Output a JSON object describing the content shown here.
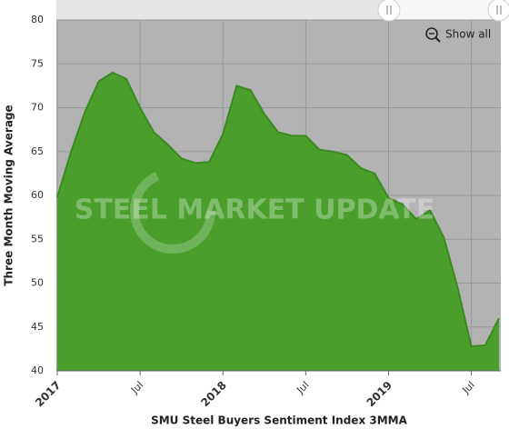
{
  "chart_data": {
    "type": "area",
    "title": "SMU Steel Buyers Sentiment Index 3MMA",
    "y_label": "Three Month Moving Average",
    "watermark": "STEEL MARKET UPDATE",
    "button": "Show all",
    "color": "#4a9e2c",
    "line_color": "#3b8a21",
    "grid": true,
    "categories": [
      "2017-01",
      "2017-02",
      "2017-03",
      "2017-04",
      "2017-05",
      "2017-06",
      "2017-07",
      "2017-08",
      "2017-09",
      "2017-10",
      "2017-11",
      "2017-12",
      "2018-01",
      "2018-02",
      "2018-03",
      "2018-04",
      "2018-05",
      "2018-06",
      "2018-07",
      "2018-08",
      "2018-09",
      "2018-10",
      "2018-11",
      "2018-12",
      "2019-01",
      "2019-02",
      "2019-03",
      "2019-04",
      "2019-05",
      "2019-06",
      "2019-07",
      "2019-08",
      "2019-09"
    ],
    "values": [
      59.8,
      65,
      69.5,
      73,
      74,
      73.3,
      70,
      67.2,
      65.8,
      64.2,
      63.7,
      63.8,
      67,
      72.5,
      72,
      69.3,
      67.2,
      66.8,
      66.8,
      65.2,
      65,
      64.6,
      63.1,
      62.5,
      59.7,
      59,
      57.3,
      58.3,
      55.2,
      49.5,
      42.8,
      42.9,
      46
    ],
    "ylim": [
      40,
      80
    ],
    "yticks": [
      40,
      45,
      50,
      55,
      60,
      65,
      70,
      75,
      80
    ],
    "xticks": [
      {
        "value": "2017-01",
        "label": "2017"
      },
      {
        "value": "2017-07",
        "label": "Jul"
      },
      {
        "value": "2018-01",
        "label": "2018"
      },
      {
        "value": "2018-07",
        "label": "Jul"
      },
      {
        "value": "2019-01",
        "label": "2019"
      },
      {
        "value": "2019-07",
        "label": "Jul"
      }
    ]
  }
}
